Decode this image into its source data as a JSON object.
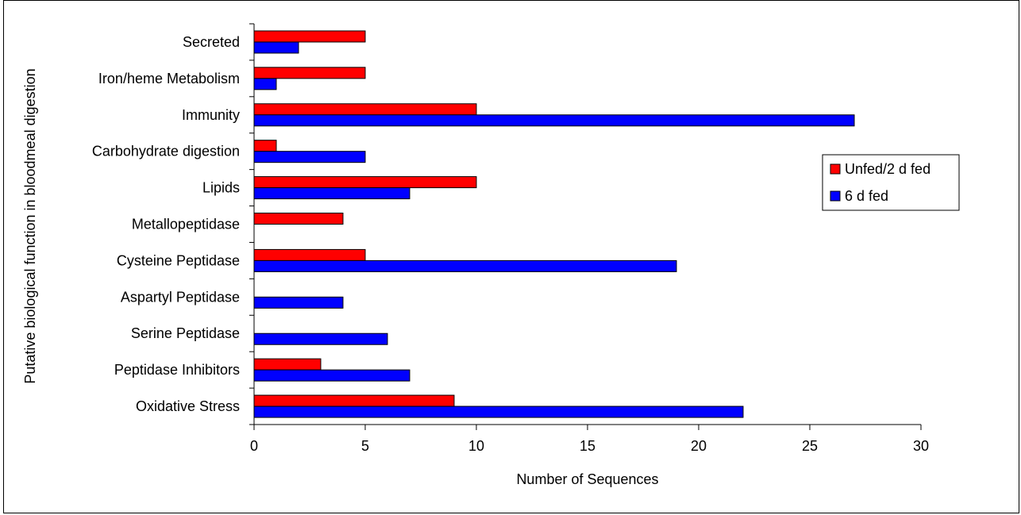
{
  "chart_data": {
    "type": "bar",
    "orientation": "horizontal",
    "categories": [
      "Secreted",
      "Iron/heme Metabolism",
      "Immunity",
      "Carbohydrate digestion",
      "Lipids",
      "Metallopeptidase",
      "Cysteine Peptidase",
      "Aspartyl Peptidase",
      "Serine Peptidase",
      "Peptidase Inhibitors",
      "Oxidative Stress"
    ],
    "series": [
      {
        "name": "Unfed/2 d fed",
        "color": "#ff0000",
        "values": [
          5,
          5,
          10,
          1,
          10,
          4,
          5,
          0,
          0,
          3,
          9
        ]
      },
      {
        "name": "6 d fed",
        "color": "#0000ff",
        "values": [
          2,
          1,
          27,
          5,
          7,
          0,
          19,
          4,
          6,
          7,
          22
        ]
      }
    ],
    "xlabel": "Number of Sequences",
    "ylabel": "Putative biological function in bloodmeal digestion",
    "xlim": [
      0,
      30
    ],
    "xticks": [
      0,
      5,
      10,
      15,
      20,
      25,
      30
    ],
    "grid": false,
    "legend_position": "right"
  }
}
